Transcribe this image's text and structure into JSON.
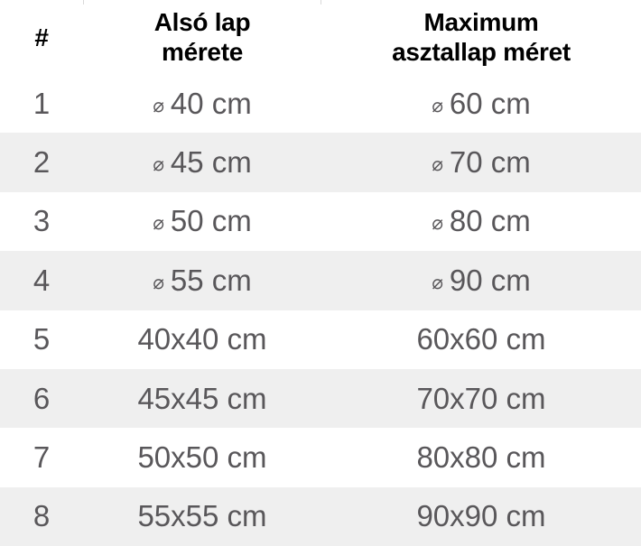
{
  "chart_data": {
    "type": "table",
    "columns": [
      "#",
      "Alsó lap mérete",
      "Maximum asztallap méret"
    ],
    "rows": [
      [
        "1",
        "⌀ 40 cm",
        "⌀ 60 cm"
      ],
      [
        "2",
        "⌀ 45 cm",
        "⌀ 70 cm"
      ],
      [
        "3",
        "⌀ 50 cm",
        "⌀ 80 cm"
      ],
      [
        "4",
        "⌀ 55 cm",
        "⌀ 90 cm"
      ],
      [
        "5",
        "40x40 cm",
        "60x60 cm"
      ],
      [
        "6",
        "45x45 cm",
        "70x70 cm"
      ],
      [
        "7",
        "50x50 cm",
        "80x80 cm"
      ],
      [
        "8",
        "55x55 cm",
        "90x90 cm"
      ]
    ],
    "layout_hints": {
      "zebra_striping": true,
      "header_two_lines": true
    }
  },
  "table": {
    "columns": [
      {
        "label": "#",
        "lines": [
          "#"
        ]
      },
      {
        "label": "Alsó lap mérete",
        "lines": [
          "Alsó lap",
          "mérete"
        ]
      },
      {
        "label": "Maximum asztallap méret",
        "lines": [
          "Maximum",
          "asztallap méret"
        ]
      }
    ],
    "diameter_symbol": "⌀",
    "rows": [
      {
        "num": "1",
        "base": "40 cm",
        "top": "60 cm"
      },
      {
        "num": "2",
        "base": "45 cm",
        "top": "70 cm"
      },
      {
        "num": "3",
        "base": "50 cm",
        "top": "80 cm"
      },
      {
        "num": "4",
        "base": "55 cm",
        "top": "90 cm"
      },
      {
        "num": "5",
        "base": "40x40 cm",
        "top": "60x60 cm"
      },
      {
        "num": "6",
        "base": "45x45 cm",
        "top": "70x70 cm"
      },
      {
        "num": "7",
        "base": "50x50 cm",
        "top": "80x80 cm"
      },
      {
        "num": "8",
        "base": "55x55 cm",
        "top": "90x90 cm"
      }
    ]
  },
  "colors": {
    "header_text": "#000000",
    "body_text": "#59575a",
    "row_background": "#ffffff",
    "row_alt_background": "#efefef",
    "divider": "#d9d9d9"
  }
}
